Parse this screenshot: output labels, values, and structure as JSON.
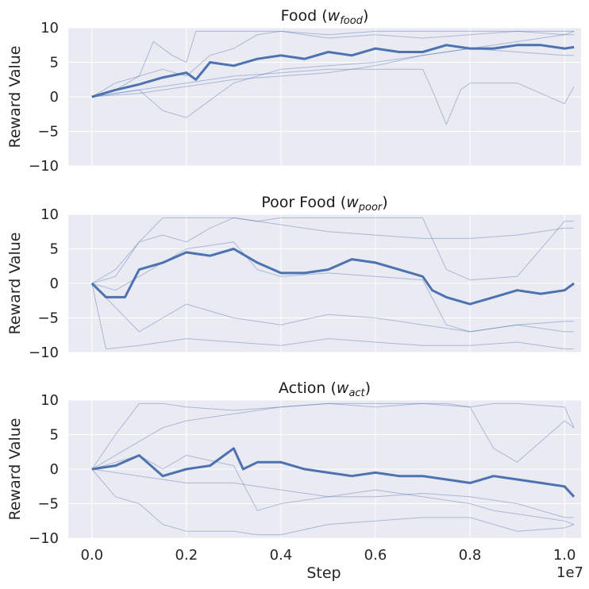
{
  "figure": {
    "xlabel": "Step",
    "x_offset_label": "1e7"
  },
  "chart_data": [
    {
      "type": "line",
      "title_prefix": "Food (",
      "title_var": "w",
      "title_sub": "food",
      "title_suffix": ")",
      "ylabel": "Reward Value",
      "xlim": [
        -0.05,
        1.035
      ],
      "ylim": [
        -10,
        10
      ],
      "xticks": [
        0.0,
        0.2,
        0.4,
        0.6,
        0.8,
        1.0
      ],
      "xtick_labels": [
        "0.0",
        "0.2",
        "0.4",
        "0.6",
        "0.8",
        "1.0"
      ],
      "yticks": [
        10,
        5,
        0,
        -5,
        -10
      ],
      "ytick_labels": [
        "10",
        "5",
        "0",
        "−5",
        "−10"
      ],
      "grid": true,
      "mean": {
        "x": [
          0.0,
          0.05,
          0.1,
          0.15,
          0.2,
          0.22,
          0.25,
          0.3,
          0.35,
          0.4,
          0.45,
          0.5,
          0.55,
          0.6,
          0.65,
          0.7,
          0.75,
          0.8,
          0.85,
          0.9,
          0.95,
          1.0,
          1.02
        ],
        "y": [
          0.0,
          1.0,
          1.8,
          2.8,
          3.5,
          2.5,
          5.0,
          4.5,
          5.5,
          6.0,
          5.5,
          6.5,
          6.0,
          7.0,
          6.5,
          6.5,
          7.5,
          7.0,
          7.0,
          7.5,
          7.5,
          7.0,
          7.2
        ]
      },
      "runs": [
        {
          "x": [
            0.0,
            0.05,
            0.1,
            0.15,
            0.2,
            0.25,
            0.3,
            0.35,
            0.4,
            0.45,
            0.5,
            0.6,
            0.7,
            0.8,
            0.9,
            1.0,
            1.02
          ],
          "y": [
            0.0,
            2.0,
            3.0,
            4.0,
            3.0,
            6.0,
            7.0,
            9.0,
            9.5,
            9.0,
            8.5,
            9.0,
            8.5,
            9.0,
            9.5,
            9.5,
            9.5
          ]
        },
        {
          "x": [
            0.0,
            0.05,
            0.1,
            0.13,
            0.17,
            0.2,
            0.22,
            0.25,
            0.3,
            0.35,
            0.4,
            0.5,
            0.6,
            0.7,
            0.8,
            0.9,
            1.0,
            1.02
          ],
          "y": [
            0.0,
            1.0,
            3.0,
            8.0,
            6.0,
            5.0,
            9.5,
            9.5,
            9.5,
            9.5,
            9.5,
            9.0,
            9.5,
            9.5,
            9.5,
            9.5,
            9.0,
            9.0
          ]
        },
        {
          "x": [
            0.0,
            0.1,
            0.15,
            0.2,
            0.3,
            0.4,
            0.5,
            0.6,
            0.7,
            0.8,
            0.9,
            1.0,
            1.02
          ],
          "y": [
            0.0,
            1.0,
            -2.0,
            -3.0,
            2.0,
            4.0,
            4.5,
            5.0,
            6.0,
            7.0,
            6.5,
            6.0,
            6.0
          ]
        },
        {
          "x": [
            0.0,
            0.1,
            0.2,
            0.3,
            0.4,
            0.5,
            0.6,
            0.7,
            0.72,
            0.75,
            0.78,
            0.8,
            0.9,
            1.0,
            1.02
          ],
          "y": [
            0.0,
            1.0,
            2.0,
            3.0,
            3.5,
            4.0,
            4.0,
            4.0,
            1.0,
            -4.0,
            1.0,
            2.0,
            2.0,
            -1.0,
            1.5
          ]
        },
        {
          "x": [
            0.0,
            0.1,
            0.2,
            0.3,
            0.4,
            0.5,
            0.6,
            0.7,
            0.8,
            0.9,
            1.0,
            1.02
          ],
          "y": [
            0.0,
            0.5,
            1.5,
            2.5,
            3.0,
            3.5,
            4.5,
            6.0,
            7.0,
            8.0,
            9.0,
            9.5
          ]
        }
      ]
    },
    {
      "type": "line",
      "title_prefix": "Poor Food (",
      "title_var": "w",
      "title_sub": "poor",
      "title_suffix": ")",
      "ylabel": "Reward Value",
      "xlim": [
        -0.05,
        1.035
      ],
      "ylim": [
        -10,
        10
      ],
      "xticks": [
        0.0,
        0.2,
        0.4,
        0.6,
        0.8,
        1.0
      ],
      "xtick_labels": [
        "0.0",
        "0.2",
        "0.4",
        "0.6",
        "0.8",
        "1.0"
      ],
      "yticks": [
        10,
        5,
        0,
        -5,
        -10
      ],
      "ytick_labels": [
        "10",
        "5",
        "0",
        "−5",
        "−10"
      ],
      "grid": true,
      "mean": {
        "x": [
          0.0,
          0.03,
          0.07,
          0.1,
          0.15,
          0.2,
          0.25,
          0.3,
          0.35,
          0.4,
          0.45,
          0.5,
          0.55,
          0.6,
          0.65,
          0.7,
          0.72,
          0.75,
          0.8,
          0.85,
          0.9,
          0.95,
          1.0,
          1.02
        ],
        "y": [
          0.0,
          -2.0,
          -2.0,
          2.0,
          3.0,
          4.5,
          4.0,
          5.0,
          3.0,
          1.5,
          1.5,
          2.0,
          3.5,
          3.0,
          2.0,
          1.0,
          -1.0,
          -2.0,
          -3.0,
          -2.0,
          -1.0,
          -1.5,
          -1.0,
          0.0
        ]
      },
      "runs": [
        {
          "x": [
            0.0,
            0.05,
            0.1,
            0.15,
            0.2,
            0.25,
            0.3,
            0.4,
            0.5,
            0.6,
            0.7,
            0.8,
            0.9,
            1.0,
            1.02
          ],
          "y": [
            0.0,
            1.0,
            6.0,
            9.5,
            9.5,
            9.5,
            9.5,
            8.5,
            7.5,
            7.0,
            6.5,
            6.5,
            7.0,
            8.0,
            8.0
          ]
        },
        {
          "x": [
            0.0,
            0.05,
            0.1,
            0.15,
            0.2,
            0.25,
            0.3,
            0.35,
            0.4,
            0.5,
            0.6,
            0.7,
            0.75,
            0.8,
            0.9,
            1.0,
            1.02
          ],
          "y": [
            0.0,
            2.0,
            6.0,
            7.0,
            6.0,
            8.0,
            9.5,
            9.0,
            9.5,
            9.5,
            9.5,
            9.5,
            2.0,
            0.5,
            1.0,
            9.0,
            9.0
          ]
        },
        {
          "x": [
            0.0,
            0.05,
            0.1,
            0.15,
            0.2,
            0.3,
            0.35,
            0.4,
            0.5,
            0.6,
            0.7,
            0.75,
            0.8,
            0.9,
            1.0,
            1.02
          ],
          "y": [
            0.0,
            -1.0,
            1.0,
            3.0,
            5.0,
            6.0,
            2.0,
            1.0,
            1.5,
            1.0,
            0.5,
            -6.0,
            -7.0,
            -6.0,
            -5.5,
            -5.5
          ]
        },
        {
          "x": [
            0.0,
            0.1,
            0.15,
            0.2,
            0.3,
            0.4,
            0.5,
            0.6,
            0.7,
            0.8,
            0.9,
            1.0,
            1.02
          ],
          "y": [
            0.0,
            -7.0,
            -5.0,
            -3.0,
            -5.0,
            -6.0,
            -4.5,
            -5.0,
            -6.0,
            -7.0,
            -6.0,
            -7.0,
            -7.0
          ]
        },
        {
          "x": [
            0.0,
            0.03,
            0.1,
            0.2,
            0.3,
            0.4,
            0.5,
            0.6,
            0.7,
            0.8,
            0.9,
            1.0,
            1.02
          ],
          "y": [
            0.0,
            -9.5,
            -9.0,
            -8.0,
            -8.5,
            -9.0,
            -8.0,
            -8.5,
            -9.0,
            -9.0,
            -8.5,
            -9.5,
            -9.5
          ]
        }
      ]
    },
    {
      "type": "line",
      "title_prefix": "Action (",
      "title_var": "w",
      "title_sub": "act",
      "title_suffix": ")",
      "ylabel": "Reward Value",
      "xlim": [
        -0.05,
        1.035
      ],
      "ylim": [
        -10,
        10
      ],
      "xticks": [
        0.0,
        0.2,
        0.4,
        0.6,
        0.8,
        1.0
      ],
      "xtick_labels": [
        "0.0",
        "0.2",
        "0.4",
        "0.6",
        "0.8",
        "1.0"
      ],
      "yticks": [
        10,
        5,
        0,
        -5,
        -10
      ],
      "ytick_labels": [
        "10",
        "5",
        "0",
        "−5",
        "−10"
      ],
      "grid": true,
      "mean": {
        "x": [
          0.0,
          0.05,
          0.1,
          0.15,
          0.2,
          0.25,
          0.3,
          0.32,
          0.35,
          0.4,
          0.45,
          0.5,
          0.55,
          0.6,
          0.65,
          0.7,
          0.75,
          0.8,
          0.85,
          0.9,
          0.95,
          1.0,
          1.02
        ],
        "y": [
          0.0,
          0.5,
          2.0,
          -1.0,
          0.0,
          0.5,
          3.0,
          0.0,
          1.0,
          1.0,
          0.0,
          -0.5,
          -1.0,
          -0.5,
          -1.0,
          -1.0,
          -1.5,
          -2.0,
          -1.0,
          -1.5,
          -2.0,
          -2.5,
          -4.0
        ]
      },
      "runs": [
        {
          "x": [
            0.0,
            0.05,
            0.1,
            0.15,
            0.2,
            0.3,
            0.4,
            0.5,
            0.6,
            0.7,
            0.75,
            0.8,
            0.85,
            0.9,
            1.0,
            1.02
          ],
          "y": [
            0.0,
            5.0,
            9.5,
            9.5,
            9.0,
            8.5,
            9.0,
            9.5,
            9.0,
            9.5,
            9.5,
            9.0,
            9.5,
            9.5,
            9.0,
            6.0
          ]
        },
        {
          "x": [
            0.0,
            0.05,
            0.1,
            0.15,
            0.2,
            0.3,
            0.4,
            0.5,
            0.6,
            0.7,
            0.8,
            0.85,
            0.9,
            1.0,
            1.02
          ],
          "y": [
            0.0,
            2.0,
            4.0,
            6.0,
            7.0,
            8.0,
            9.0,
            9.5,
            9.5,
            9.5,
            9.0,
            3.0,
            1.0,
            7.0,
            6.0
          ]
        },
        {
          "x": [
            0.0,
            0.05,
            0.1,
            0.15,
            0.2,
            0.3,
            0.35,
            0.4,
            0.5,
            0.6,
            0.7,
            0.8,
            0.9,
            1.0,
            1.02
          ],
          "y": [
            0.0,
            1.0,
            2.0,
            0.0,
            2.0,
            0.5,
            -6.0,
            -5.0,
            -4.0,
            -4.0,
            -3.5,
            -4.0,
            -5.0,
            -7.0,
            -7.0
          ]
        },
        {
          "x": [
            0.0,
            0.05,
            0.1,
            0.15,
            0.2,
            0.3,
            0.35,
            0.4,
            0.5,
            0.6,
            0.7,
            0.8,
            0.9,
            1.0,
            1.02
          ],
          "y": [
            0.0,
            -4.0,
            -5.0,
            -8.0,
            -9.0,
            -9.0,
            -9.5,
            -9.5,
            -8.0,
            -7.5,
            -7.0,
            -7.0,
            -9.0,
            -8.5,
            -8.0
          ]
        },
        {
          "x": [
            0.0,
            0.1,
            0.2,
            0.3,
            0.4,
            0.5,
            0.6,
            0.7,
            0.8,
            0.85,
            0.9,
            1.0,
            1.02
          ],
          "y": [
            0.0,
            -1.0,
            -2.0,
            -2.0,
            -3.0,
            -4.0,
            -3.0,
            -4.0,
            -5.0,
            -6.0,
            -6.5,
            -7.5,
            -8.0
          ]
        }
      ]
    }
  ]
}
